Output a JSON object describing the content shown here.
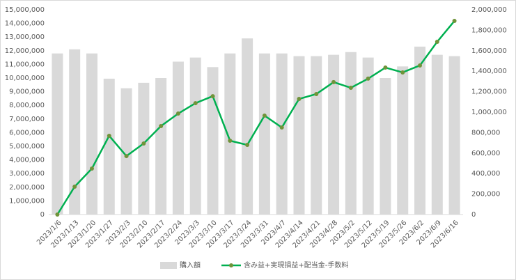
{
  "chart_data": {
    "type": "combo",
    "categories": [
      "2023/1/6",
      "2023/1/13",
      "2023/1/20",
      "2023/1/27",
      "2023/2/3",
      "2023/2/10",
      "2023/2/17",
      "2023/2/24",
      "2023/3/3",
      "2023/3/10",
      "2023/3/17",
      "2023/3/24",
      "2023/3/31",
      "2023/4/7",
      "2023/4/14",
      "2023/4/21",
      "2023/4/28",
      "2023/5/2",
      "2023/5/12",
      "2023/5/19",
      "2023/5/26",
      "2023/6/2",
      "2023/6/9",
      "2023/6/16"
    ],
    "series": [
      {
        "name": "購入額",
        "type": "bar",
        "color": "#d9d9d9",
        "values": [
          11800000,
          12100000,
          11800000,
          9950000,
          9250000,
          9650000,
          10000000,
          11200000,
          11500000,
          10800000,
          11800000,
          12900000,
          11800000,
          11800000,
          11600000,
          11600000,
          11700000,
          11900000,
          11500000,
          10000000,
          10850000,
          12300000,
          11700000,
          11600000
        ]
      },
      {
        "name": "含み益+実現損益+配当金-手数料",
        "type": "line",
        "axis": "y2",
        "color": "#00b050",
        "marker_color": "#70933a",
        "values": [
          0,
          272000,
          449000,
          769000,
          571000,
          694000,
          864000,
          986000,
          1088000,
          1156000,
          721000,
          680000,
          966000,
          850000,
          1129000,
          1177000,
          1293000,
          1238000,
          1327000,
          1435000,
          1388000,
          1456000,
          1687000,
          1891000
        ]
      }
    ],
    "ylim": [
      0,
      15000000
    ],
    "yticks": [
      {
        "value": 0,
        "label": "0"
      },
      {
        "value": 1000000,
        "label": "1,000,000"
      },
      {
        "value": 2000000,
        "label": "2,000,000"
      },
      {
        "value": 3000000,
        "label": "3,000,000"
      },
      {
        "value": 4000000,
        "label": "4,000,000"
      },
      {
        "value": 5000000,
        "label": "5,000,000"
      },
      {
        "value": 6000000,
        "label": "6,000,000"
      },
      {
        "value": 7000000,
        "label": "7,000,000"
      },
      {
        "value": 8000000,
        "label": "8,000,000"
      },
      {
        "value": 9000000,
        "label": "9,000,000"
      },
      {
        "value": 10000000,
        "label": "10,000,000"
      },
      {
        "value": 11000000,
        "label": "11,000,000"
      },
      {
        "value": 12000000,
        "label": "12,000,000"
      },
      {
        "value": 13000000,
        "label": "13,000,000"
      },
      {
        "value": 14000000,
        "label": "14,000,000"
      },
      {
        "value": 15000000,
        "label": "15,000,000"
      }
    ],
    "y2lim": [
      0,
      2000000
    ],
    "y2ticks": [
      {
        "value": 0,
        "label": "0"
      },
      {
        "value": 200000,
        "label": "200,000"
      },
      {
        "value": 400000,
        "label": "400,000"
      },
      {
        "value": 600000,
        "label": "600,000"
      },
      {
        "value": 800000,
        "label": "800,000"
      },
      {
        "value": 1000000,
        "label": "1,000,000"
      },
      {
        "value": 1200000,
        "label": "1,200,000"
      },
      {
        "value": 1400000,
        "label": "1,400,000"
      },
      {
        "value": 1600000,
        "label": "1,600,000"
      },
      {
        "value": 1800000,
        "label": "1,800,000"
      },
      {
        "value": 2000000,
        "label": "2,000,000"
      }
    ],
    "grid": false,
    "legend": "bottom"
  }
}
